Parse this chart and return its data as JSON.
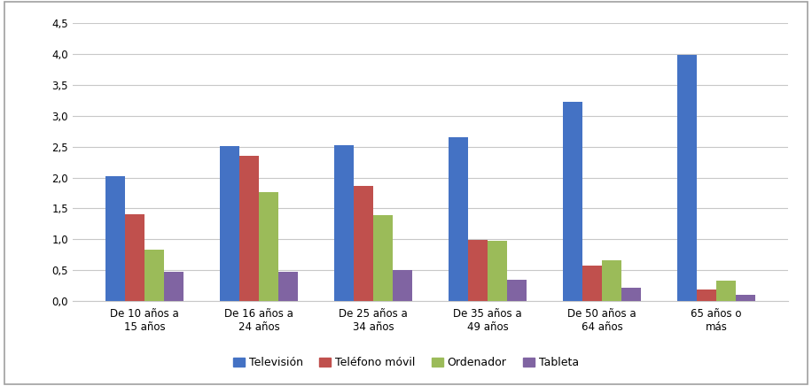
{
  "categories": [
    "De 10 años a\n15 años",
    "De 16 años a\n24 años",
    "De 25 años a\n34 años",
    "De 35 años a\n49 años",
    "De 50 años a\n64 años",
    "65 años o\nmás"
  ],
  "series": {
    "Televisión": [
      2.02,
      2.51,
      2.52,
      2.66,
      3.22,
      3.98
    ],
    "Teléfono móvil": [
      1.4,
      2.35,
      1.87,
      0.99,
      0.57,
      0.19
    ],
    "Ordenador": [
      0.83,
      1.76,
      1.39,
      0.98,
      0.66,
      0.33
    ],
    "Tableta": [
      0.48,
      0.48,
      0.5,
      0.34,
      0.22,
      0.1
    ]
  },
  "colors": {
    "Televisión": "#4472C4",
    "Teléfono móvil": "#C0504D",
    "Ordenador": "#9BBB59",
    "Tableta": "#8064A2"
  },
  "ylim": [
    0,
    4.5
  ],
  "yticks": [
    0.0,
    0.5,
    1.0,
    1.5,
    2.0,
    2.5,
    3.0,
    3.5,
    4.0,
    4.5
  ],
  "ytick_labels": [
    "0,0",
    "0,5",
    "1,0",
    "1,5",
    "2,0",
    "2,5",
    "3,0",
    "3,5",
    "4,0",
    "4,5"
  ],
  "bar_width": 0.17,
  "background_color": "#FFFFFF",
  "grid_color": "#C8C8C8",
  "border_color": "#A0A0A0",
  "legend_order": [
    "Televisión",
    "Teléfono móvil",
    "Ordenador",
    "Tableta"
  ]
}
